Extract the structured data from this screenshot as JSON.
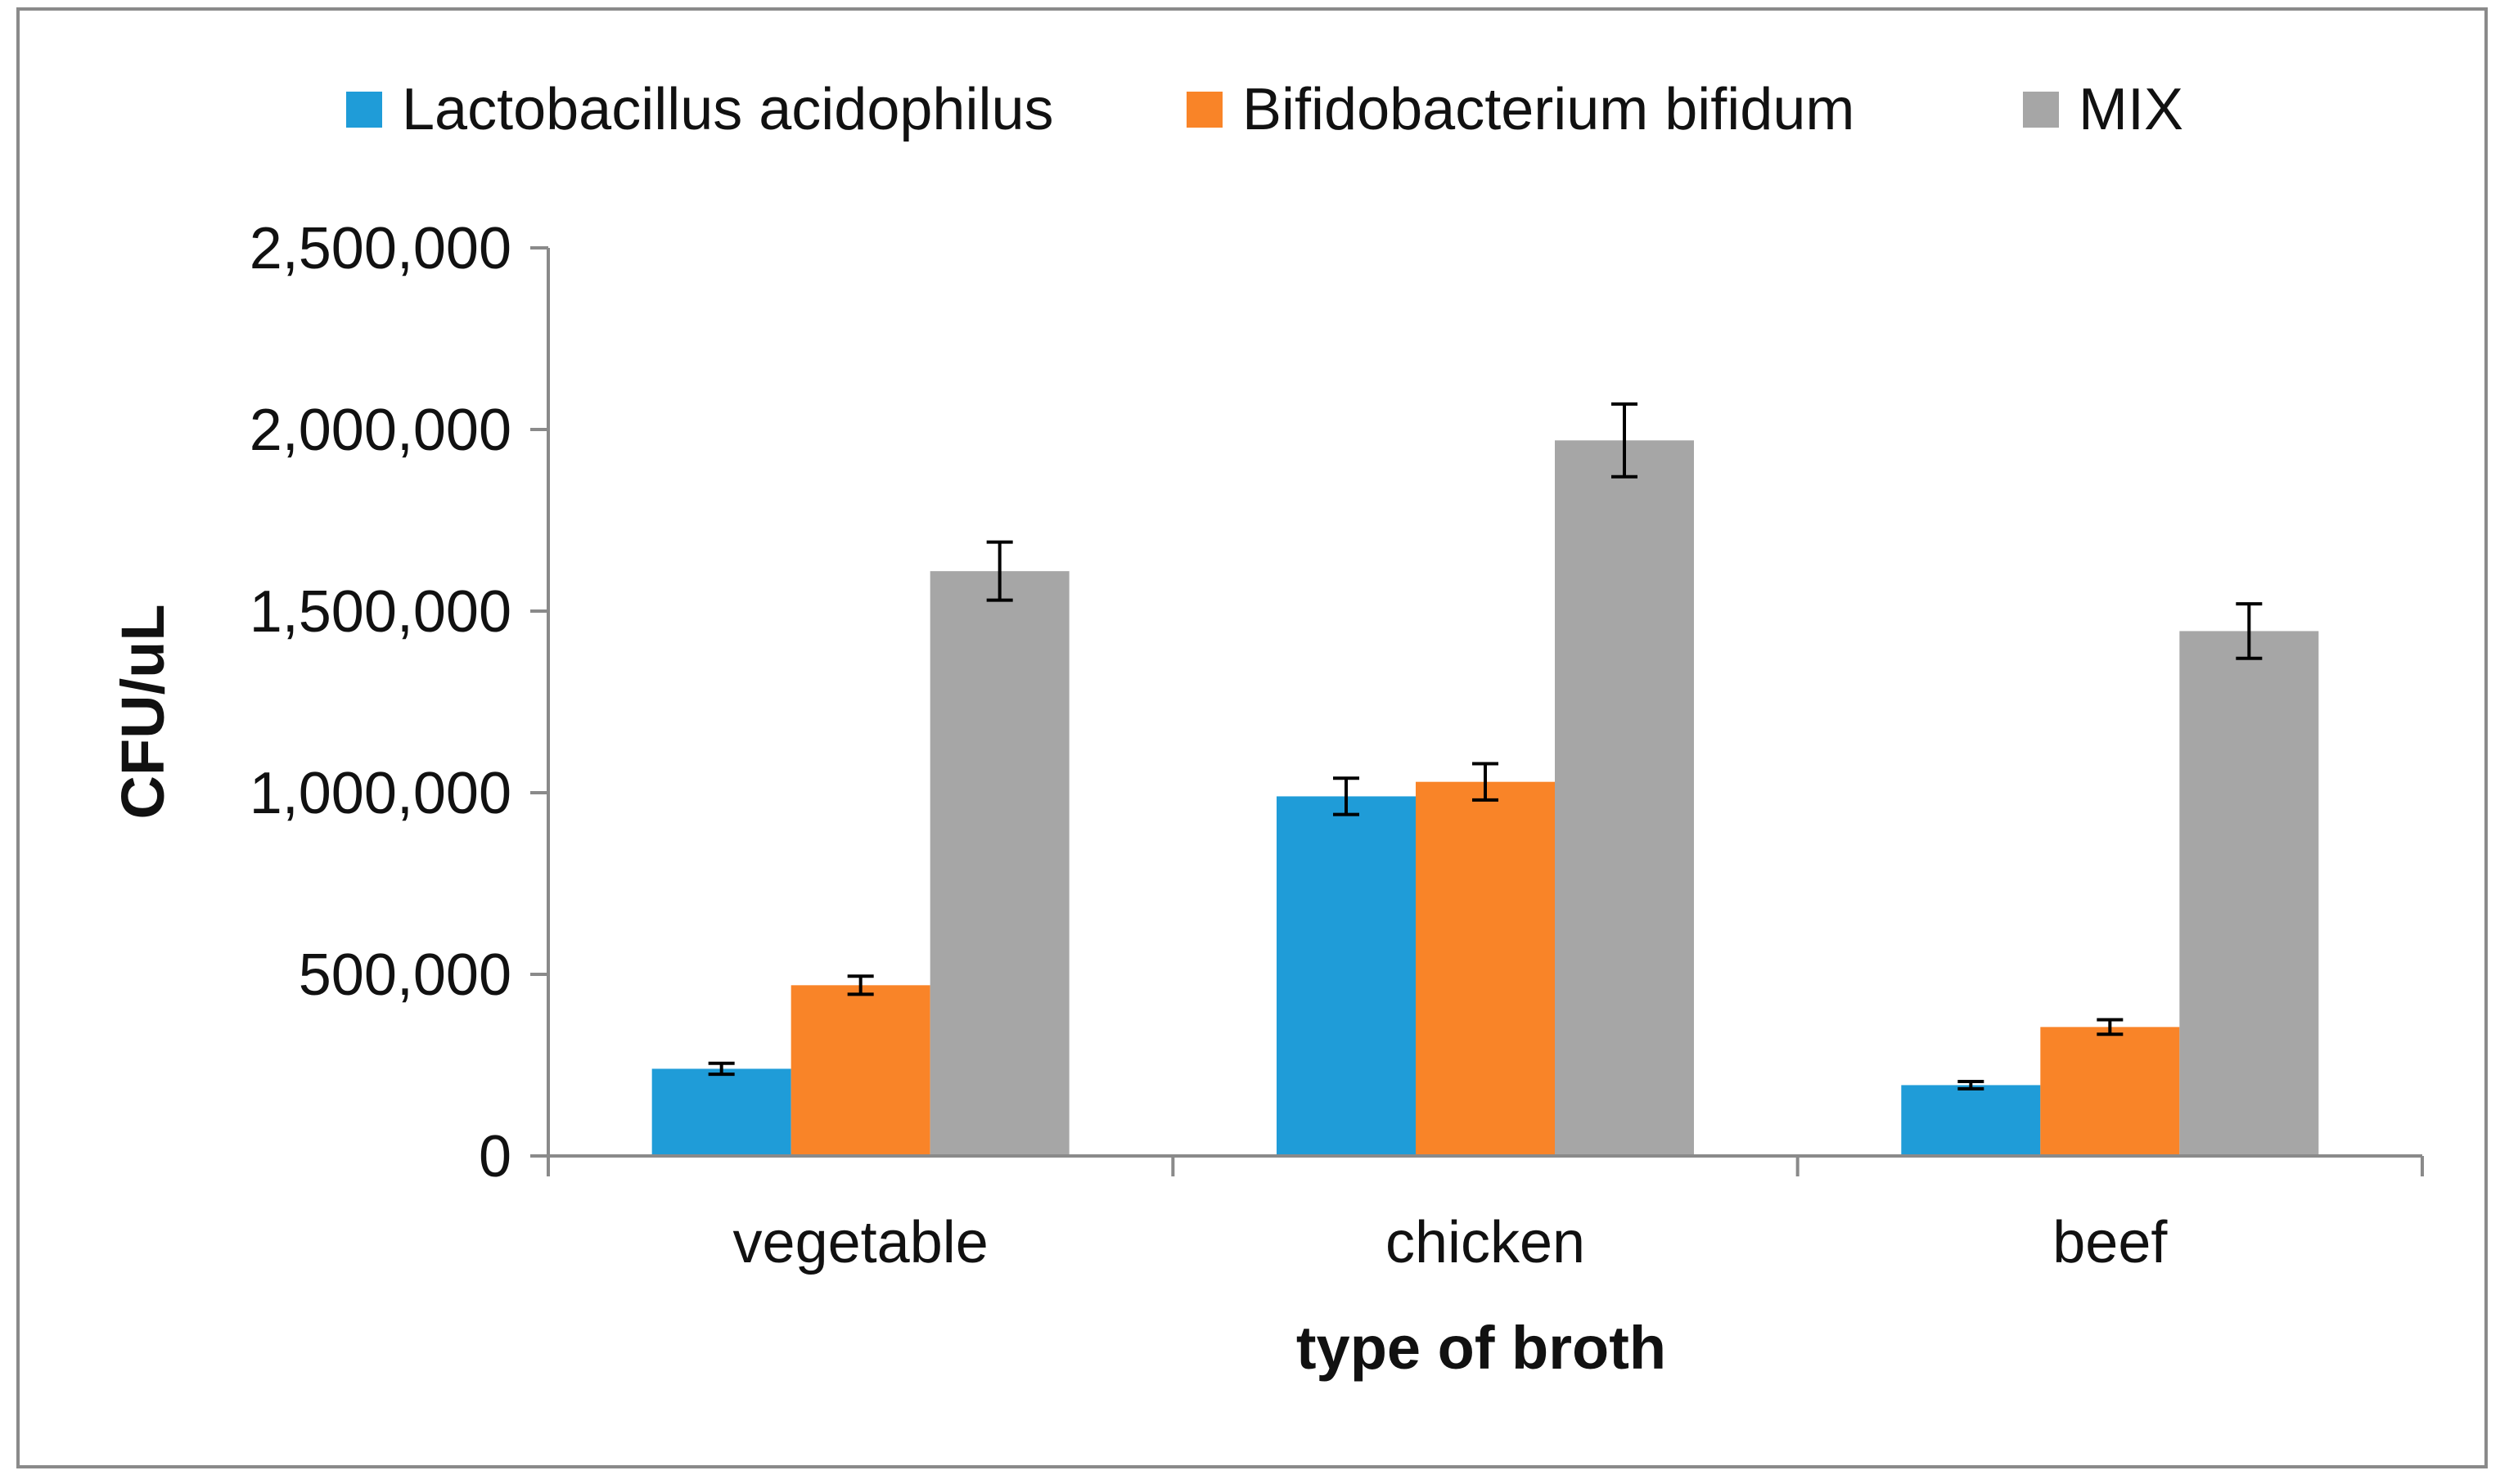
{
  "chart_data": {
    "type": "bar",
    "title": "",
    "xlabel": "type of broth",
    "ylabel": "CFU/uL",
    "categories": [
      "vegetable",
      "chicken",
      "beef"
    ],
    "series": [
      {
        "name": "Lactobacillus acidophilus",
        "color": "#1f9cd8",
        "values": [
          240000,
          990000,
          195000
        ],
        "errors": [
          15000,
          50000,
          10000
        ]
      },
      {
        "name": "Bifidobacterium bifidum",
        "color": "#f98428",
        "values": [
          470000,
          1030000,
          355000
        ],
        "errors": [
          25000,
          50000,
          20000
        ]
      },
      {
        "name": "MIX",
        "color": "#a6a6a6",
        "values": [
          1610000,
          1970000,
          1445000
        ],
        "errors": [
          80000,
          100000,
          75000
        ]
      }
    ],
    "ylim": [
      0,
      2500000
    ],
    "yticks": [
      0,
      500000,
      1000000,
      1500000,
      2000000,
      2500000
    ],
    "ytick_labels": [
      "0",
      "500,000",
      "1,000,000",
      "1,500,000",
      "2,000,000",
      "2,500,000"
    ],
    "grid": false,
    "legend_position": "top"
  }
}
